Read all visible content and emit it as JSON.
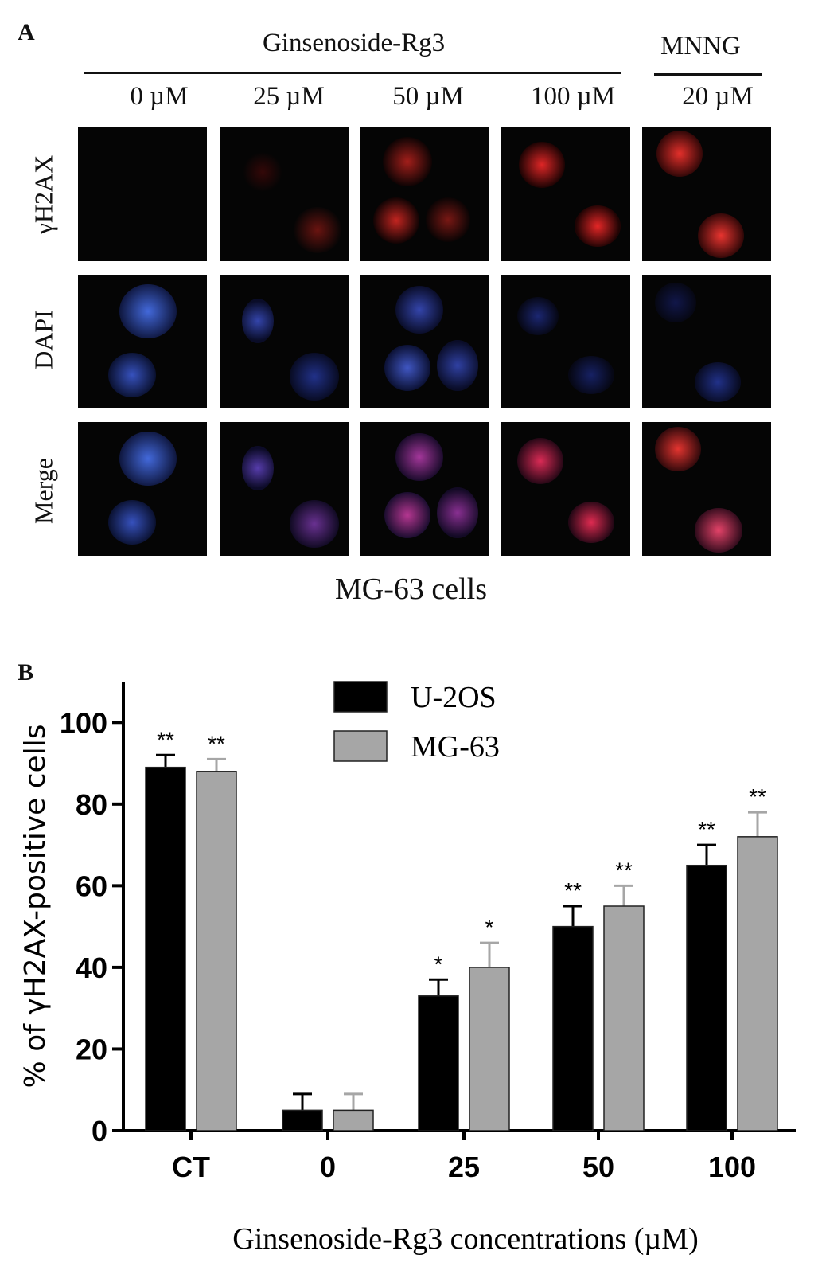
{
  "panel_a": {
    "letter": "A",
    "group_label": "Ginsenoside-Rg3",
    "control_label": "MNNG",
    "doses": [
      "0 µM",
      "25 µM",
      "50 µM",
      "100 µM",
      "20 µM"
    ],
    "rows": [
      "γH2AX",
      "DAPI",
      "Merge"
    ],
    "caption": "MG-63 cells"
  },
  "panel_b": {
    "letter": "B"
  },
  "chart_data": {
    "type": "bar",
    "categories": [
      "CT",
      "0",
      "25",
      "50",
      "100"
    ],
    "series": [
      {
        "name": "U-2OS",
        "color": "#000000",
        "values": [
          89,
          5,
          33,
          50,
          65
        ],
        "errors": [
          3,
          4,
          4,
          5,
          5
        ],
        "significance": [
          "**",
          "",
          "*",
          "**",
          "**"
        ]
      },
      {
        "name": "MG-63",
        "color": "#a6a6a6",
        "values": [
          88,
          5,
          40,
          55,
          72
        ],
        "errors": [
          3,
          4,
          6,
          5,
          6
        ],
        "significance": [
          "**",
          "",
          "*",
          "**",
          "**"
        ]
      }
    ],
    "ylim": [
      0,
      110
    ],
    "yticks": [
      "0",
      "20",
      "40",
      "60",
      "80",
      "100"
    ],
    "ytick_values": [
      0,
      20,
      40,
      60,
      80,
      100
    ],
    "ylabel": "% of γH2AX-positive cells",
    "xlabel": "Ginsenoside-Rg3 concentrations (µM)",
    "legend_position": "top-center"
  }
}
